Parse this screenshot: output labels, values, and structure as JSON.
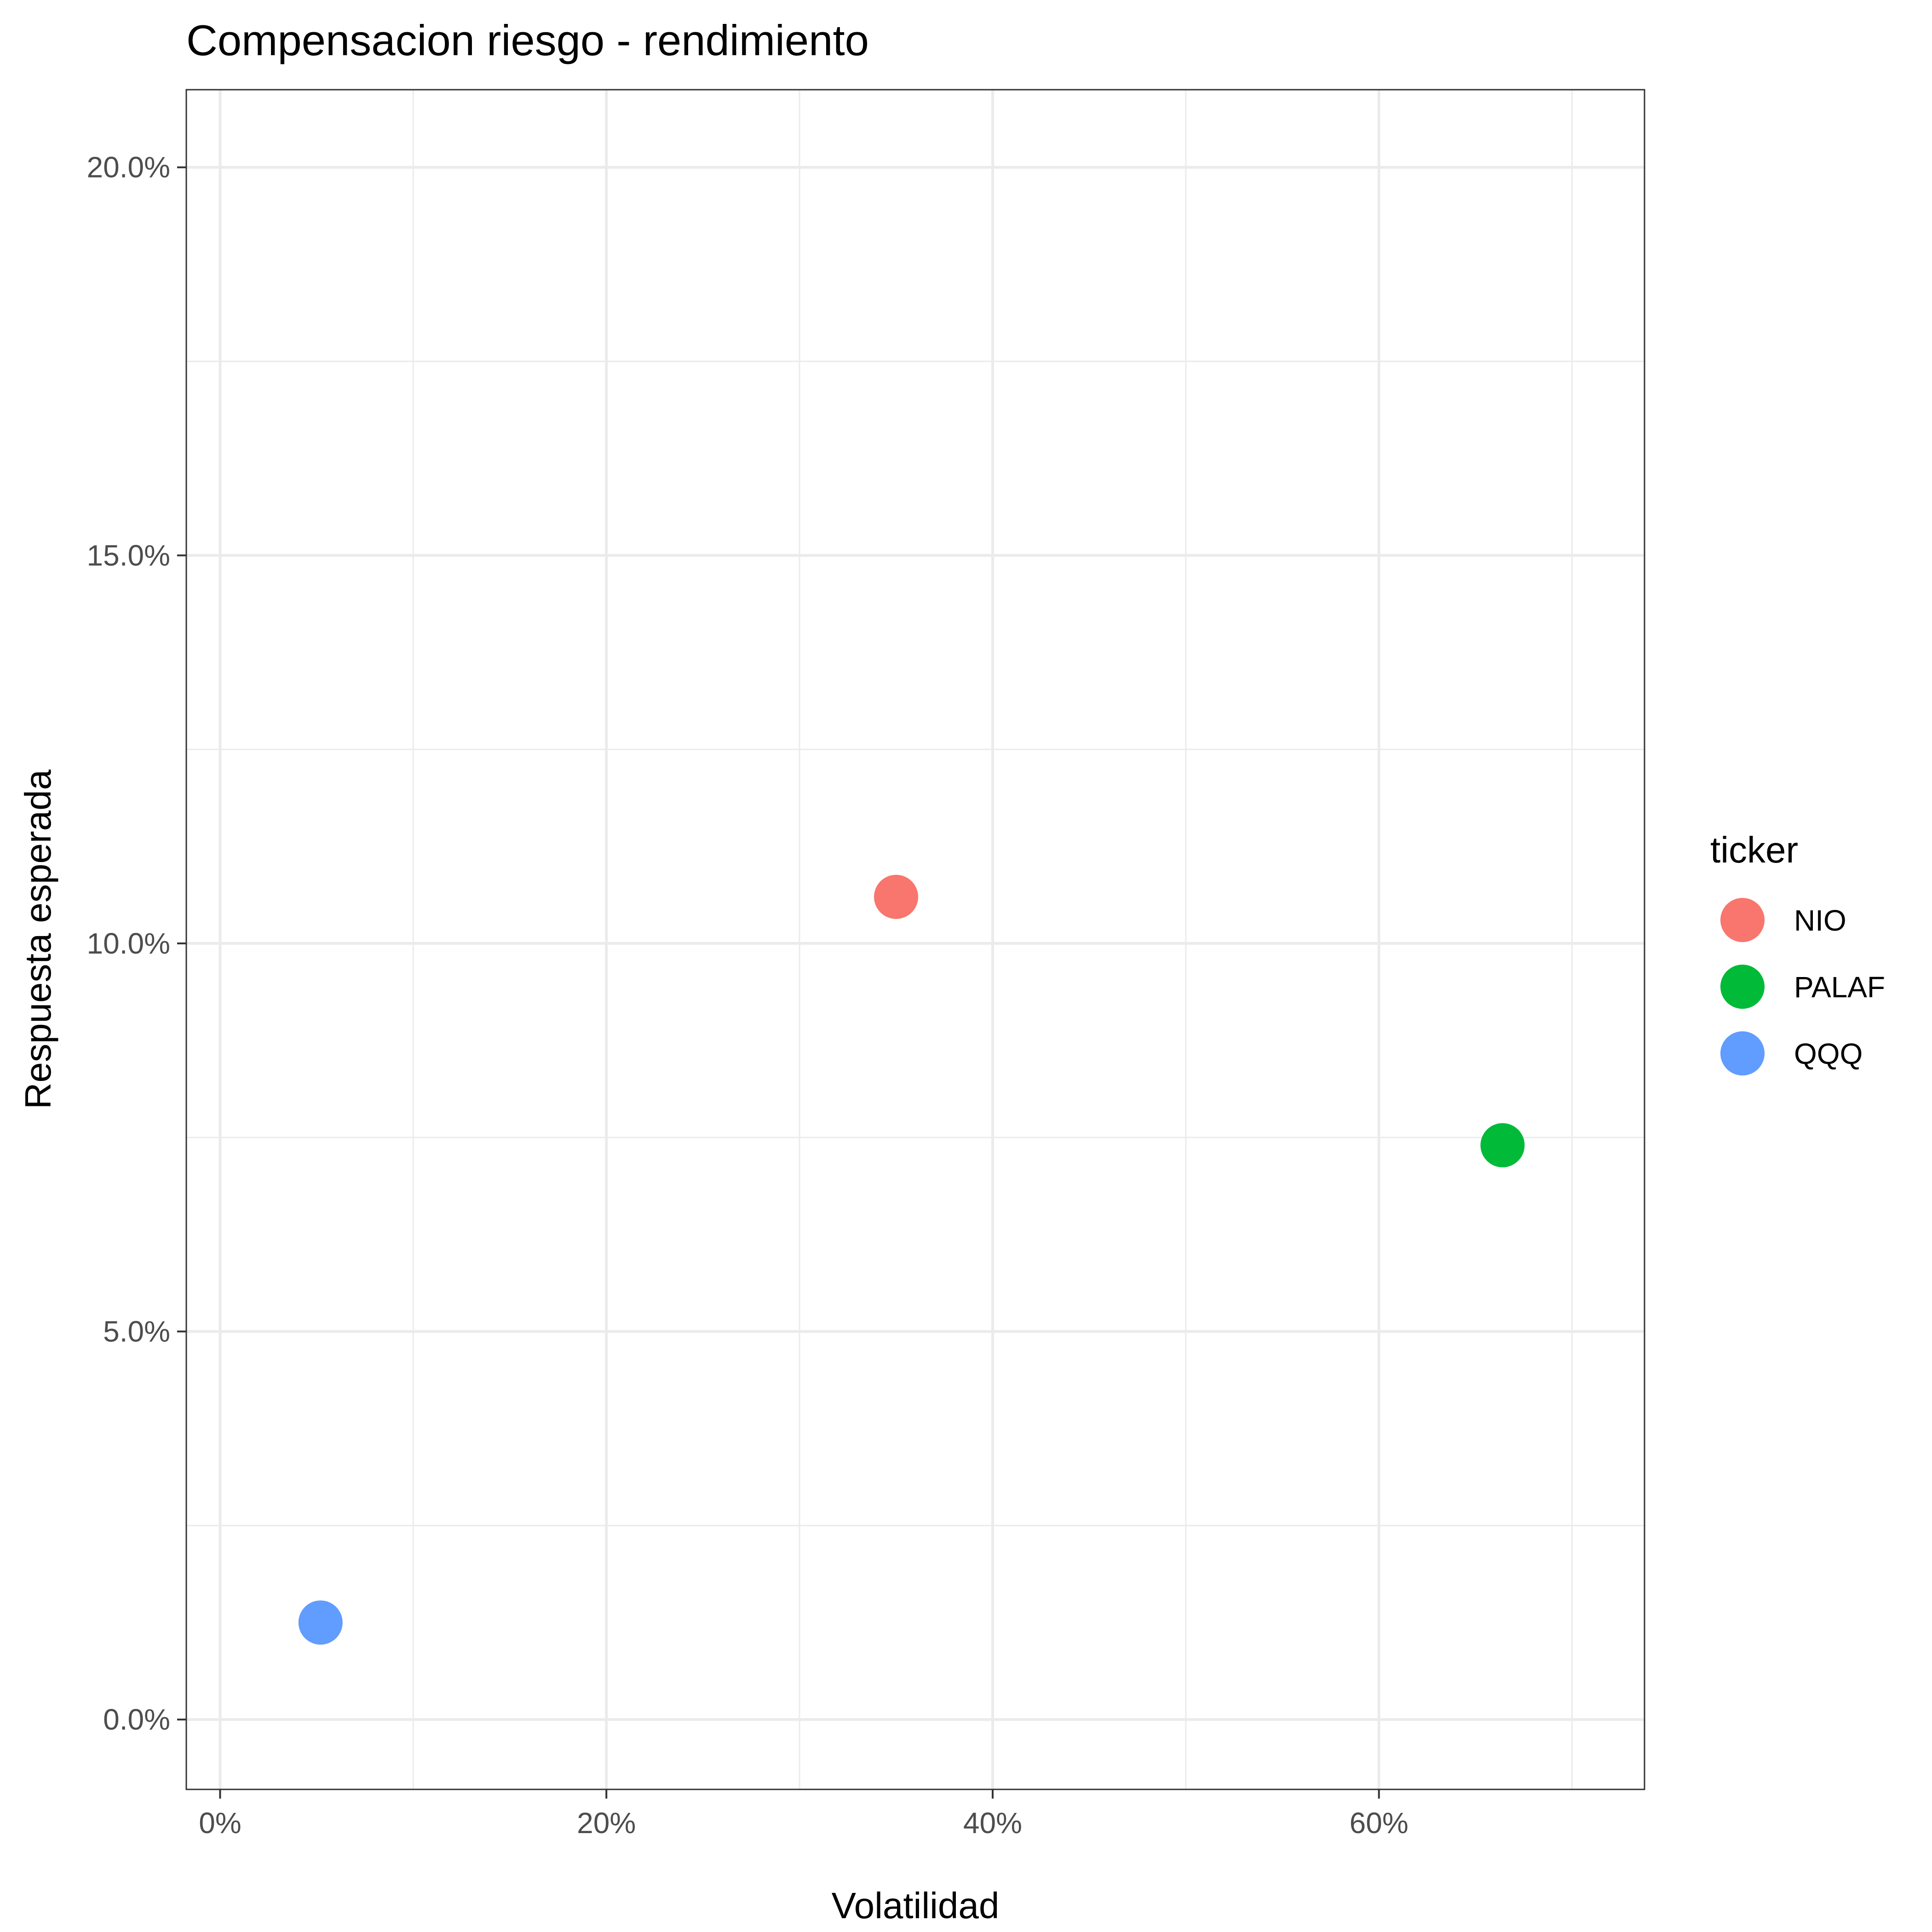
{
  "chart_data": {
    "type": "scatter",
    "title": "Compensacion riesgo - rendimiento",
    "xlabel": "Volatilidad",
    "ylabel": "Respuesta esperada",
    "xlim": [
      -0.0175,
      0.7375
    ],
    "ylim": [
      -0.009,
      0.21
    ],
    "x_ticks": [
      0,
      0.2,
      0.4,
      0.6
    ],
    "x_tick_labels": [
      "0%",
      "20%",
      "40%",
      "60%"
    ],
    "y_ticks": [
      0,
      0.05,
      0.1,
      0.15,
      0.2
    ],
    "y_tick_labels": [
      "0.0%",
      "5.0%",
      "10.0%",
      "15.0%",
      "20.0%"
    ],
    "grid": true,
    "legend": {
      "title": "ticker",
      "placement": "right"
    },
    "series": [
      {
        "name": "NIO",
        "color": "#F8766D",
        "x": [
          0.35
        ],
        "y": [
          0.106
        ]
      },
      {
        "name": "PALAF",
        "color": "#00BA38",
        "x": [
          0.664
        ],
        "y": [
          0.074
        ]
      },
      {
        "name": "QQQ",
        "color": "#619CFF",
        "x": [
          0.052
        ],
        "y": [
          0.0125
        ]
      }
    ]
  }
}
